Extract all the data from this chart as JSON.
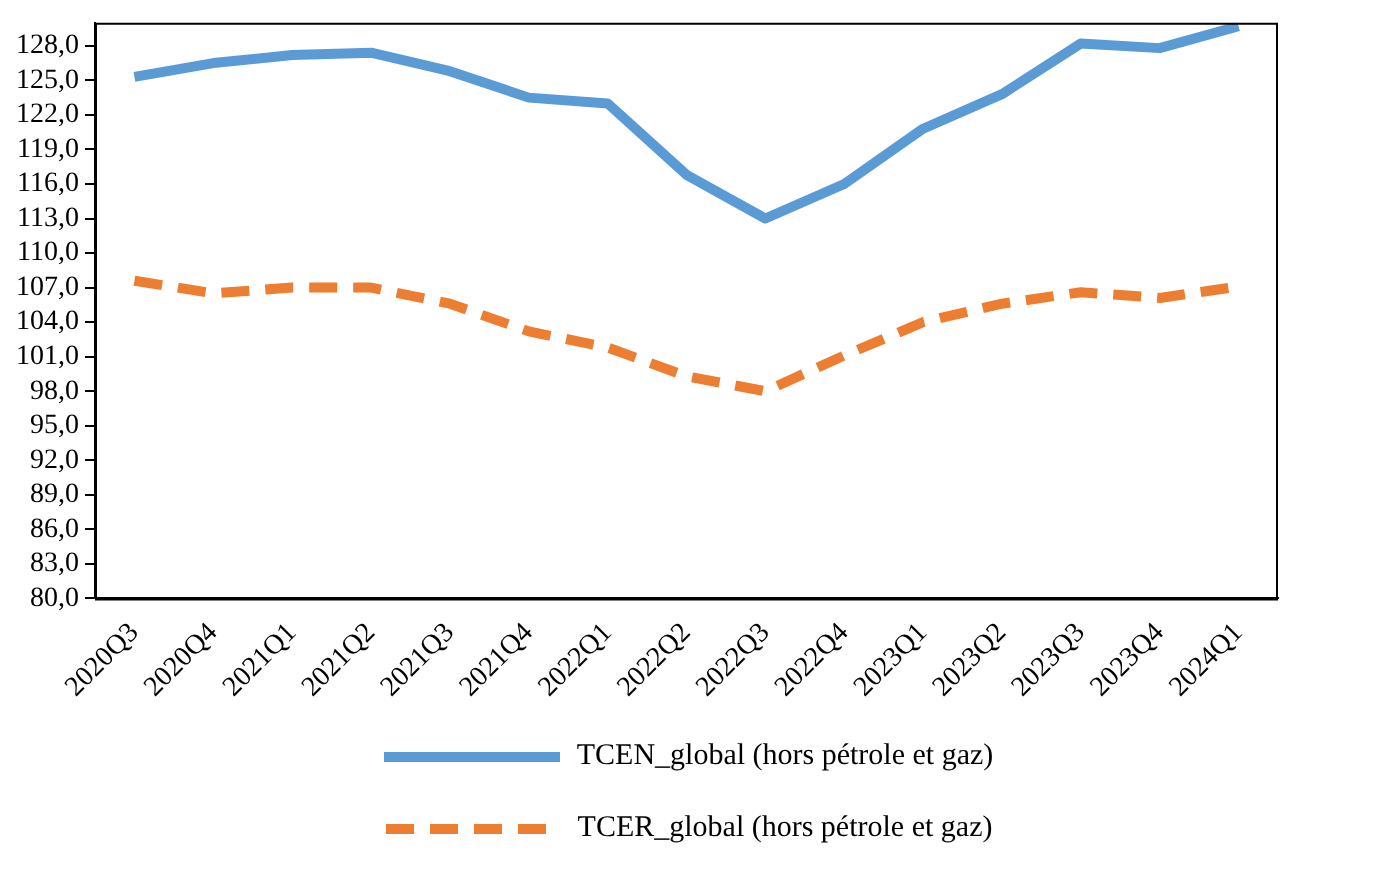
{
  "chart_data": {
    "type": "line",
    "categories": [
      "2020Q3",
      "2020Q4",
      "2021Q1",
      "2021Q2",
      "2021Q3",
      "2021Q4",
      "2022Q1",
      "2022Q2",
      "2022Q3",
      "2022Q4",
      "2023Q1",
      "2023Q2",
      "2023Q3",
      "2023Q4",
      "2024Q1"
    ],
    "series": [
      {
        "name": "TCEN_global (hors pétrole et gaz)",
        "color": "#5b9bd5",
        "line_style": "solid",
        "values": [
          125.3,
          126.5,
          127.2,
          127.4,
          125.8,
          123.5,
          123.0,
          116.8,
          113.0,
          116.0,
          120.8,
          123.8,
          128.2,
          127.8,
          129.7
        ]
      },
      {
        "name": "TCER_global (hors pétrole et gaz)",
        "color": "#ed7d31",
        "line_style": "dashed",
        "values": [
          107.6,
          106.5,
          107.0,
          107.0,
          105.6,
          103.2,
          101.8,
          99.3,
          98.0,
          101.1,
          104.0,
          105.6,
          106.6,
          106.1,
          107.1
        ]
      }
    ],
    "ylim": [
      80,
      130
    ],
    "yticks": [
      {
        "value": 80,
        "label": "80,0"
      },
      {
        "value": 83,
        "label": "83,0"
      },
      {
        "value": 86,
        "label": "86,0"
      },
      {
        "value": 89,
        "label": "89,0"
      },
      {
        "value": 92,
        "label": "92,0"
      },
      {
        "value": 95,
        "label": "95,0"
      },
      {
        "value": 98,
        "label": "98,0"
      },
      {
        "value": 101,
        "label": "101,0"
      },
      {
        "value": 104,
        "label": "104,0"
      },
      {
        "value": 107,
        "label": "107,0"
      },
      {
        "value": 110,
        "label": "110,0"
      },
      {
        "value": 113,
        "label": "113,0"
      },
      {
        "value": 116,
        "label": "116,0"
      },
      {
        "value": 119,
        "label": "119,0"
      },
      {
        "value": 122,
        "label": "122,0"
      },
      {
        "value": 125,
        "label": "125,0"
      },
      {
        "value": 128,
        "label": "128,0"
      }
    ],
    "grid": false,
    "legend": "bottom",
    "marker": "none"
  }
}
